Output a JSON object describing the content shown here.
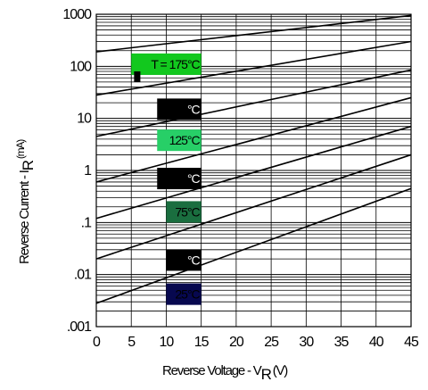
{
  "chart_data": {
    "type": "line",
    "xlabel": "Reverse Voltage - V",
    "xlabel_sub": "R",
    "xlabel_unit": "(V)",
    "ylabel": "Reverse Current - I",
    "ylabel_sub": "R",
    "ylabel_unit": "(mA)",
    "x_ticks": [
      "0",
      "5",
      "10",
      "15",
      "20",
      "25",
      "30",
      "35",
      "40",
      "45"
    ],
    "y_ticks": [
      ".001",
      ".01",
      ".1",
      "1",
      "10",
      "100",
      "1000"
    ],
    "xlim": [
      0,
      45
    ],
    "ylim": [
      0.001,
      1000
    ],
    "y_scale": "log",
    "grid": true,
    "lines": [
      {
        "x": [
          0,
          45
        ],
        "y": [
          0.0028,
          0.45
        ]
      },
      {
        "x": [
          0,
          45
        ],
        "y": [
          0.02,
          2.0
        ]
      },
      {
        "x": [
          0,
          45
        ],
        "y": [
          0.12,
          7.0
        ]
      },
      {
        "x": [
          0,
          45
        ],
        "y": [
          0.6,
          25.0
        ]
      },
      {
        "x": [
          0,
          45
        ],
        "y": [
          4.5,
          85.0
        ]
      },
      {
        "x": [
          0,
          45
        ],
        "y": [
          28,
          300
        ]
      },
      {
        "x": [
          0,
          45
        ],
        "y": [
          190,
          950
        ]
      }
    ],
    "labels": [
      {
        "text": "T  = 175°C",
        "x": 5,
        "x2": 15,
        "y_center": 110,
        "color": "#12c81e"
      },
      {
        "text": "°C",
        "x": 8.7,
        "x2": 15,
        "y_center": 15,
        "color": "#000000"
      },
      {
        "text": "125°C",
        "x": 8.7,
        "x2": 15,
        "y_center": 3.8,
        "color": "#27cf67"
      },
      {
        "text": "°C",
        "x": 8.7,
        "x2": 15,
        "y_center": 0.7,
        "color": "#000000"
      },
      {
        "text": "75°C",
        "x": 10,
        "x2": 15,
        "y_center": 0.16,
        "color": "#1a6e3f"
      },
      {
        "text": "°C",
        "x": 10,
        "x2": 15,
        "y_center": 0.019,
        "color": "#000000"
      },
      {
        "text": "25°C",
        "x": 10,
        "x2": 15,
        "y_center": 0.0042,
        "color": "#07084f"
      }
    ]
  }
}
